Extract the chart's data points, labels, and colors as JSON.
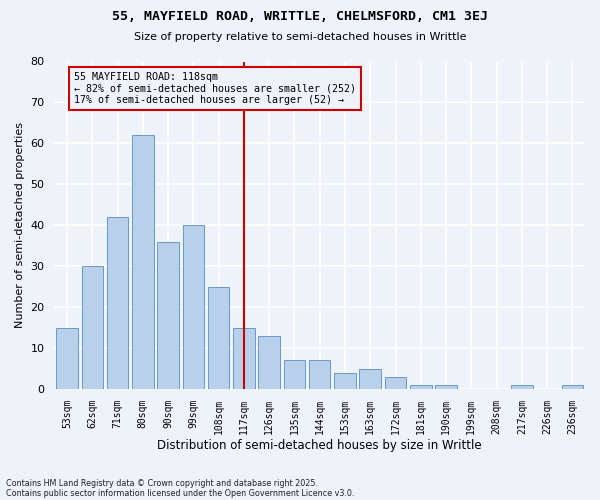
{
  "title1": "55, MAYFIELD ROAD, WRITTLE, CHELMSFORD, CM1 3EJ",
  "title2": "Size of property relative to semi-detached houses in Writtle",
  "xlabel": "Distribution of semi-detached houses by size in Writtle",
  "ylabel": "Number of semi-detached properties",
  "categories": [
    "53sqm",
    "62sqm",
    "71sqm",
    "80sqm",
    "90sqm",
    "99sqm",
    "108sqm",
    "117sqm",
    "126sqm",
    "135sqm",
    "144sqm",
    "153sqm",
    "163sqm",
    "172sqm",
    "181sqm",
    "190sqm",
    "199sqm",
    "208sqm",
    "217sqm",
    "226sqm",
    "236sqm"
  ],
  "values": [
    15,
    30,
    42,
    62,
    36,
    40,
    25,
    15,
    13,
    7,
    7,
    4,
    5,
    3,
    1,
    1,
    0,
    0,
    1,
    0,
    1
  ],
  "bar_color": "#b8d0ea",
  "bar_edge_color": "#6699cc",
  "vline_x": 7,
  "vline_color": "#cc0000",
  "annotation_title": "55 MAYFIELD ROAD: 118sqm",
  "annotation_line1": "← 82% of semi-detached houses are smaller (252)",
  "annotation_line2": "17% of semi-detached houses are larger (52) →",
  "annotation_box_color": "#cc0000",
  "ylim": [
    0,
    80
  ],
  "yticks": [
    0,
    10,
    20,
    30,
    40,
    50,
    60,
    70,
    80
  ],
  "footer1": "Contains HM Land Registry data © Crown copyright and database right 2025.",
  "footer2": "Contains public sector information licensed under the Open Government Licence v3.0.",
  "bg_color": "#eef2f9",
  "grid_color": "#ffffff"
}
